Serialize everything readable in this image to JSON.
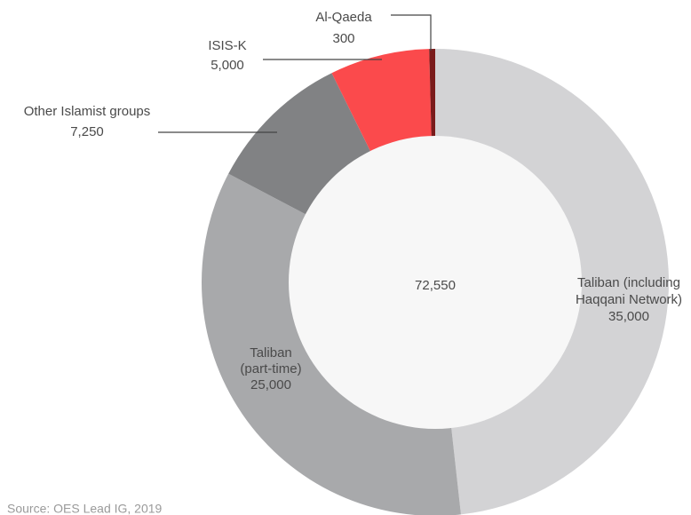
{
  "chart_data": {
    "type": "donut",
    "categories": [
      [
        "Taliban (including",
        "Haqqani Network)"
      ],
      [
        "Taliban",
        "(part-time)"
      ],
      [
        "Other Islamist groups"
      ],
      [
        "ISIS-K"
      ],
      [
        "Al-Qaeda"
      ]
    ],
    "values": [
      35000,
      25000,
      7250,
      5000,
      300
    ],
    "value_labels": [
      "35,000",
      "25,000",
      "7,250",
      "5,000",
      "300"
    ],
    "colors": [
      "#d3d3d5",
      "#a8a9ab",
      "#818284",
      "#fb4a4c",
      "#7a1b1b"
    ],
    "total": 72550,
    "total_label": "72,550",
    "source": "Source: OES Lead IG, 2019"
  }
}
